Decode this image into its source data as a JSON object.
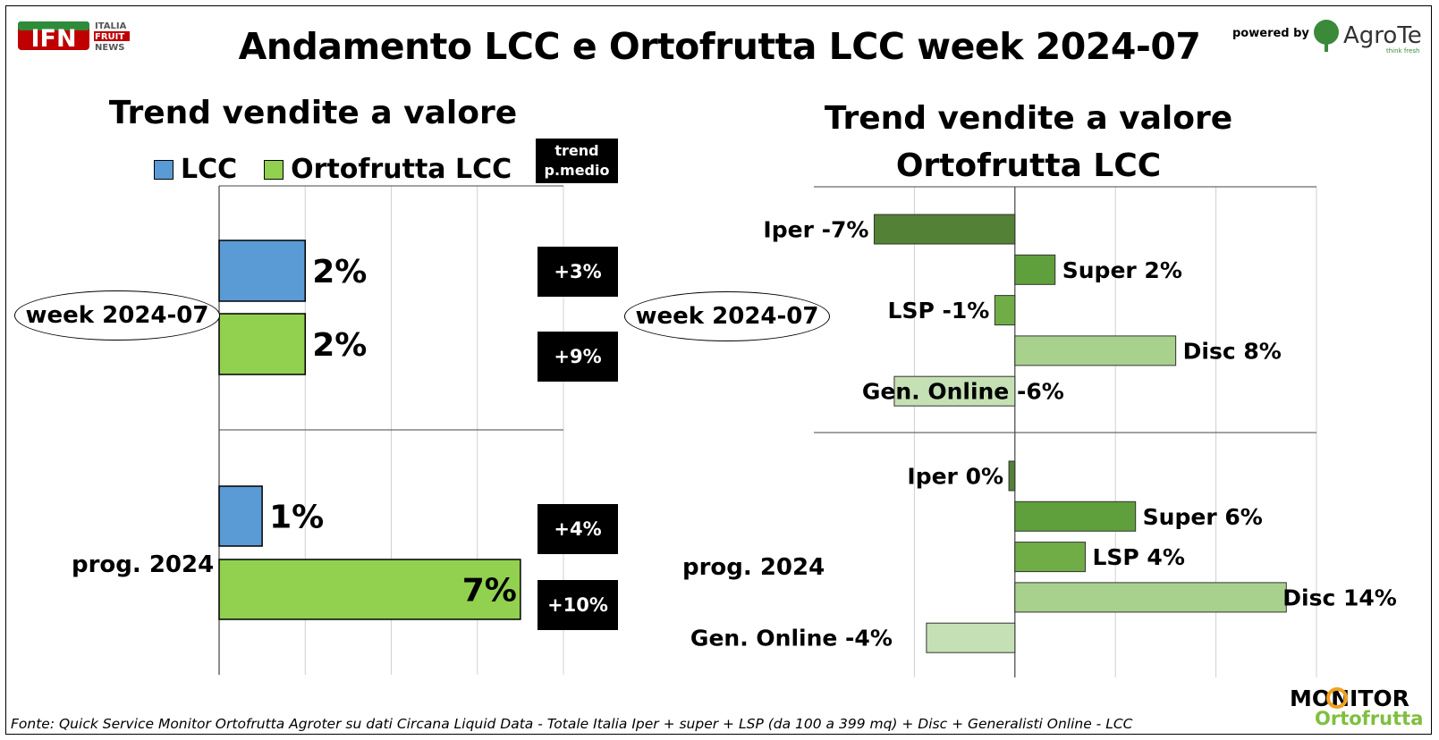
{
  "header": {
    "title": "Andamento LCC e Ortofrutta LCC week 2024-07",
    "powered_by": "powered by",
    "logo_left": "IFN",
    "logo_left_lines": [
      "ITALIA",
      "FRUIT",
      "NEWS"
    ],
    "logo_right": "AgroTer",
    "logo_right_tagline": "think fresh"
  },
  "footer": {
    "source": "Fonte: Quick Service Monitor Ortofrutta Agroter su dati Circana Liquid Data - Totale Italia Iper + super + LSP (da 100 a 399 mq) + Disc + Generalisti Online - LCC",
    "logo_top": "MONITOR",
    "logo_bottom": "Ortofrutta"
  },
  "colors": {
    "lcc": "#5b9bd5",
    "ortofrutta": "#92d050",
    "iper": "#538135",
    "super": "#5fa03c",
    "lsp": "#70ad47",
    "disc": "#a9d18e",
    "online": "#c5e0b4"
  },
  "chart_data": [
    {
      "type": "bar",
      "orientation": "horizontal",
      "title": "Trend vendite a valore",
      "categories": [
        "week 2024-07",
        "prog. 2024"
      ],
      "series": [
        {
          "name": "LCC",
          "values": [
            2,
            1
          ]
        },
        {
          "name": "Ortofrutta LCC",
          "values": [
            2,
            7
          ]
        }
      ],
      "value_labels": [
        [
          "2%",
          "1%"
        ],
        [
          "2%",
          "7%"
        ]
      ],
      "xlim": [
        0,
        8
      ],
      "grid": true,
      "legend": "top",
      "trend_header": [
        "trend",
        "p.medio"
      ],
      "trend_pmedio": [
        [
          "+3%",
          "+4%"
        ],
        [
          "+9%",
          "+10%"
        ]
      ]
    },
    {
      "type": "bar",
      "orientation": "horizontal",
      "title": [
        "Trend vendite a valore",
        "Ortofrutta LCC"
      ],
      "groups": [
        {
          "name": "week 2024-07",
          "bars": [
            {
              "label": "Iper -7%",
              "value": -7
            },
            {
              "label": "Super 2%",
              "value": 2
            },
            {
              "label": "LSP -1%",
              "value": -1
            },
            {
              "label": "Disc 8%",
              "value": 8
            },
            {
              "label": "Gen. Online -6%",
              "value": -6
            }
          ]
        },
        {
          "name": "prog. 2024",
          "bars": [
            {
              "label": "Iper 0%",
              "value": -0.3
            },
            {
              "label": "Super 6%",
              "value": 6
            },
            {
              "label": "LSP 4%",
              "value": 3.5
            },
            {
              "label": "Disc 14%",
              "value": 13.5
            },
            {
              "label": "Gen. Online -4%",
              "value": -4.4
            }
          ]
        }
      ],
      "xlim": [
        -10,
        15
      ],
      "grid": true
    }
  ]
}
